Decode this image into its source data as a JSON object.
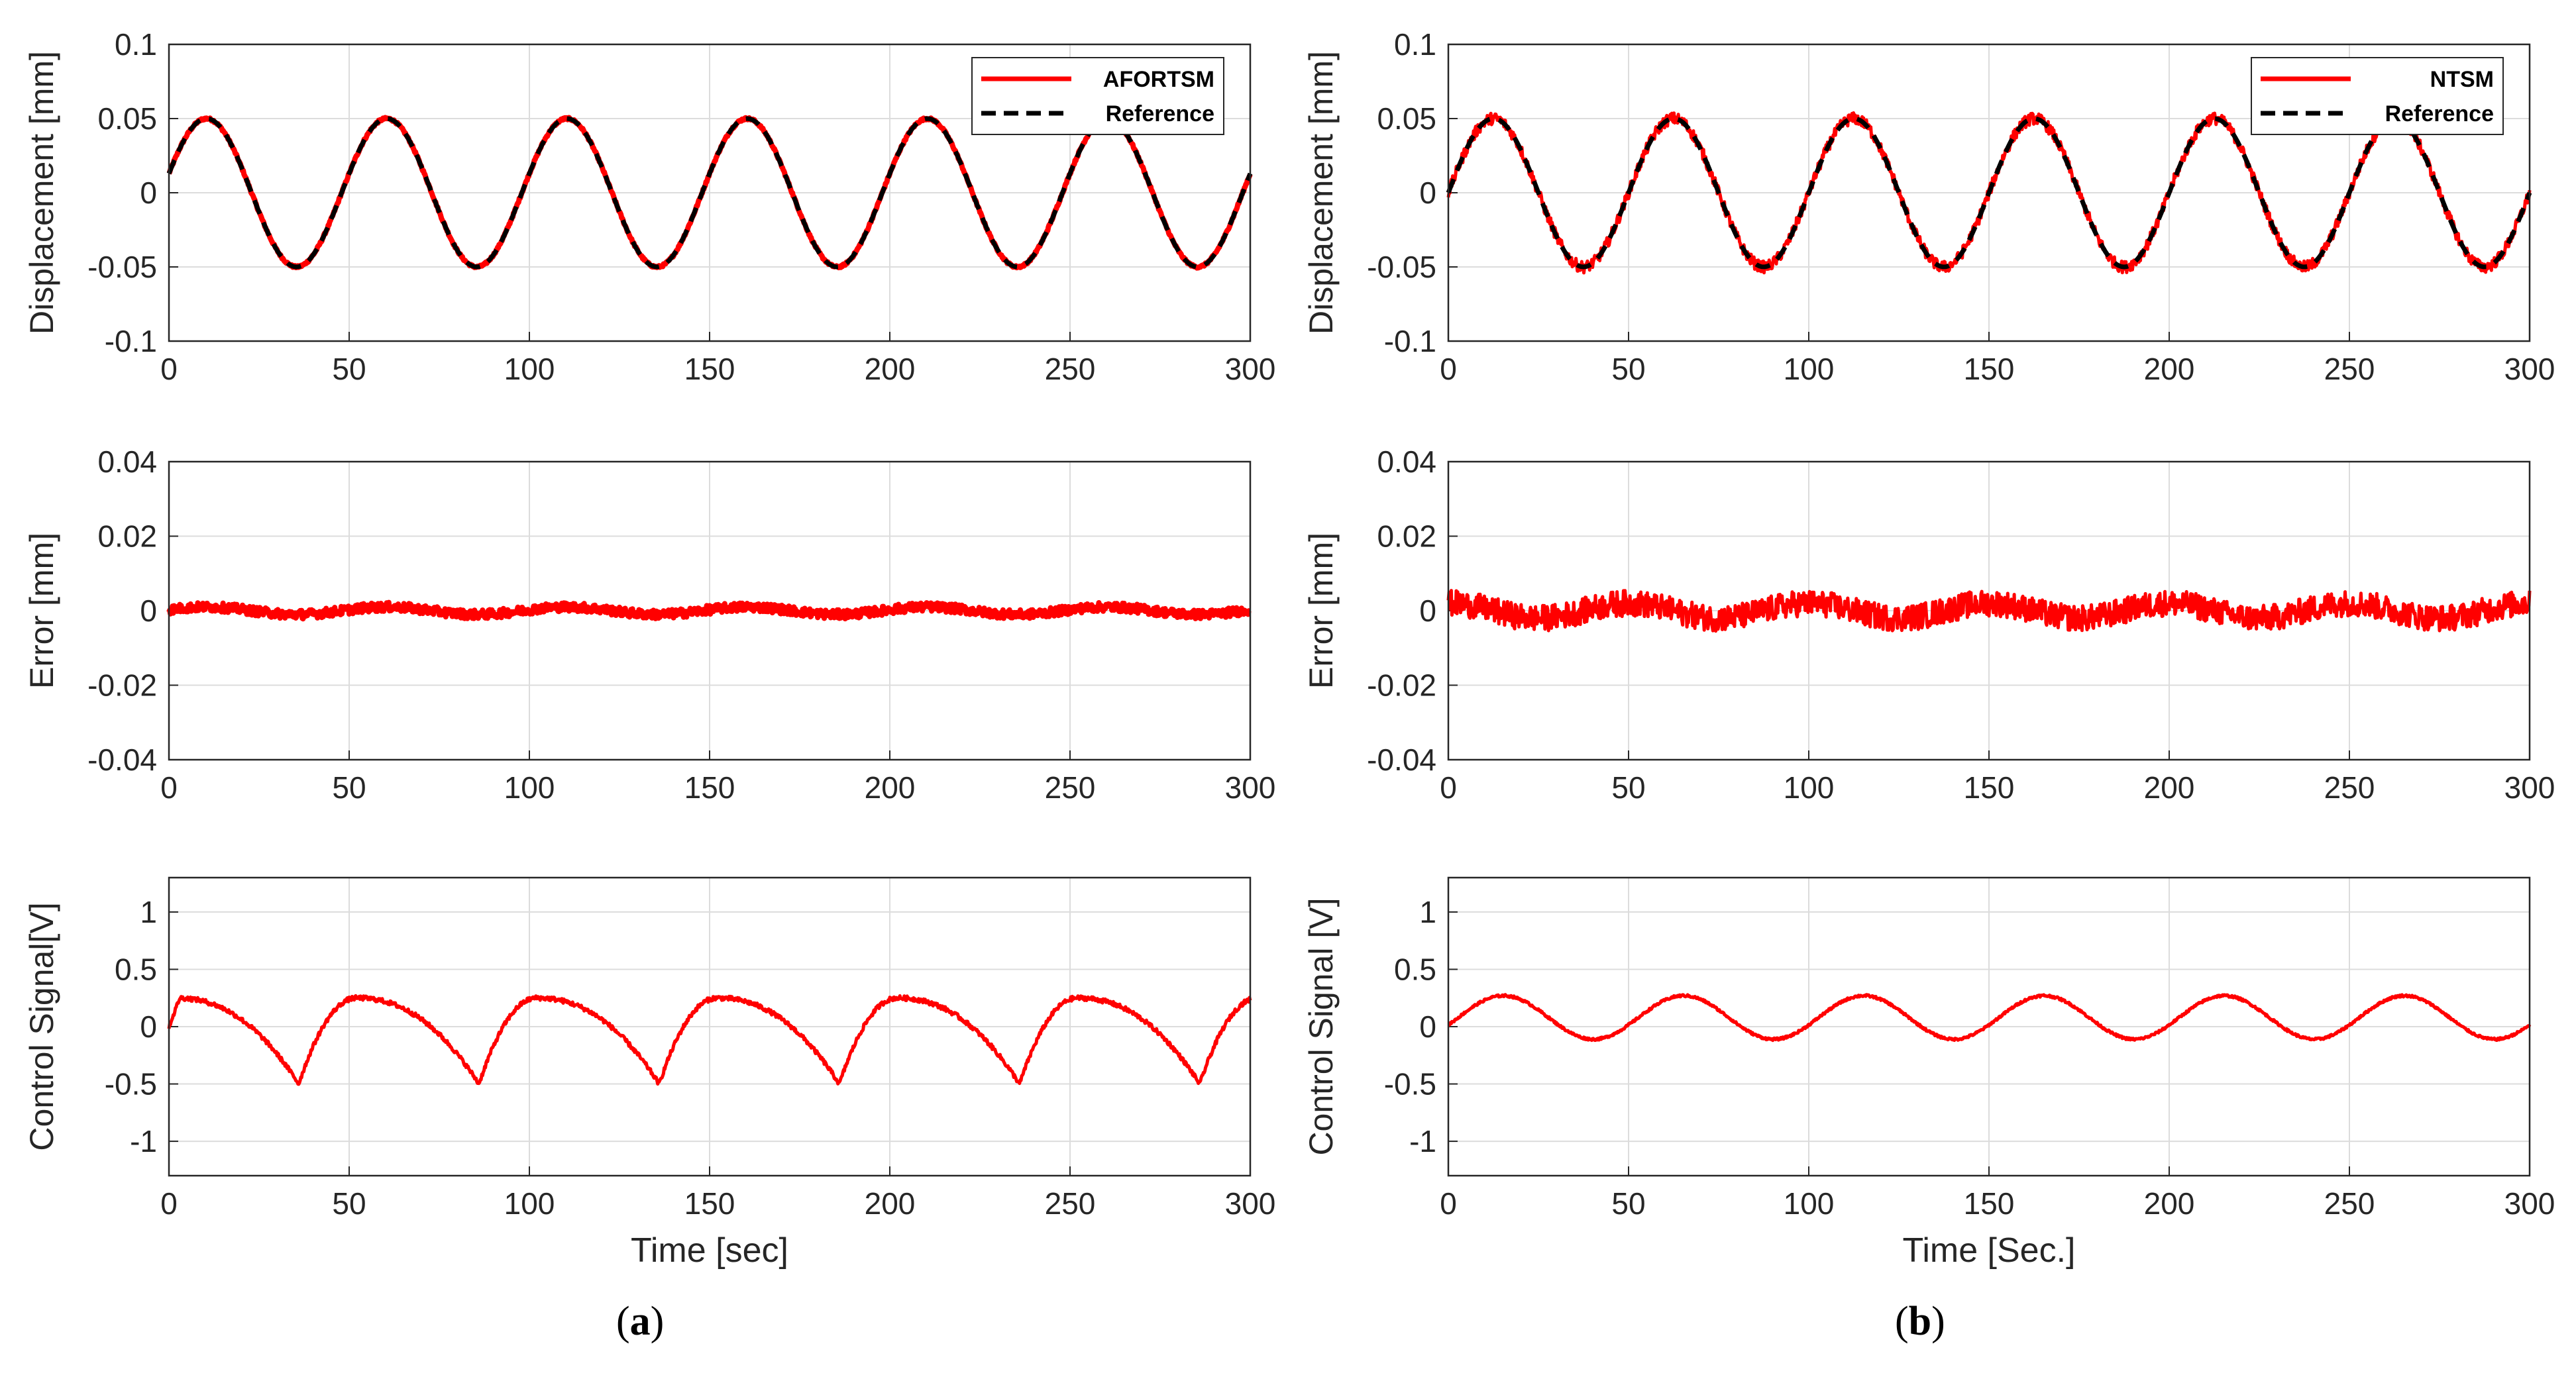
{
  "figure": {
    "label_a": "a",
    "label_b": "b"
  },
  "colors": {
    "signal": "#ff0000",
    "reference": "#000000",
    "grid": "#dcdcdc",
    "axis": "#262626"
  },
  "chart_data": [
    {
      "id": "a-displacement",
      "type": "line",
      "title": "",
      "xlabel": "",
      "ylabel": "Displacement [mm]",
      "xlim": [
        0,
        300
      ],
      "ylim": [
        -0.1,
        0.1
      ],
      "xticks": [
        "0",
        "50",
        "100",
        "150",
        "200",
        "250",
        "300"
      ],
      "yticks": [
        "-0.1",
        "-0.05",
        "0",
        "0.05",
        "0.1"
      ],
      "grid": true,
      "legend": "top-right",
      "series": [
        {
          "name": "AFORTSM",
          "style": "solid",
          "color": "#ff0000",
          "model": {
            "kind": "sine",
            "amplitude": 0.05,
            "period": 50,
            "phase_deg": 15,
            "noise": 0.0008
          }
        },
        {
          "name": "Reference",
          "style": "dashed",
          "color": "#000000",
          "model": {
            "kind": "sine",
            "amplitude": 0.05,
            "period": 50,
            "phase_deg": 15,
            "noise": 0
          }
        }
      ]
    },
    {
      "id": "b-displacement",
      "type": "line",
      "title": "",
      "xlabel": "",
      "ylabel": "Displacement [mm]",
      "xlim": [
        0,
        300
      ],
      "ylim": [
        -0.1,
        0.1
      ],
      "xticks": [
        "0",
        "50",
        "100",
        "150",
        "200",
        "250",
        "300"
      ],
      "yticks": [
        "-0.1",
        "-0.05",
        "0",
        "0.05",
        "0.1"
      ],
      "grid": true,
      "legend": "top-right",
      "series": [
        {
          "name": "NTSM",
          "style": "solid",
          "color": "#ff0000",
          "model": {
            "kind": "sine",
            "amplitude": 0.05,
            "period": 50,
            "phase_deg": 0,
            "noise": 0.004
          }
        },
        {
          "name": "Reference",
          "style": "dashed",
          "color": "#000000",
          "model": {
            "kind": "sine",
            "amplitude": 0.05,
            "period": 50,
            "phase_deg": 0,
            "noise": 0
          }
        }
      ]
    },
    {
      "id": "a-error",
      "type": "line",
      "title": "",
      "xlabel": "",
      "ylabel": "Error [mm]",
      "xlim": [
        0,
        300
      ],
      "ylim": [
        -0.04,
        0.04
      ],
      "xticks": [
        "0",
        "50",
        "100",
        "150",
        "200",
        "250",
        "300"
      ],
      "yticks": [
        "-0.04",
        "-0.02",
        "0",
        "0.02",
        "0.04"
      ],
      "grid": true,
      "legend": "none",
      "series": [
        {
          "name": "Error",
          "style": "solid",
          "color": "#ff0000",
          "model": {
            "kind": "sine",
            "amplitude": 0.001,
            "period": 50,
            "phase_deg": 15,
            "noise": 0.0012
          }
        }
      ]
    },
    {
      "id": "b-error",
      "type": "line",
      "title": "",
      "xlabel": "",
      "ylabel": "Error [mm]",
      "xlim": [
        0,
        300
      ],
      "ylim": [
        -0.04,
        0.04
      ],
      "xticks": [
        "0",
        "50",
        "100",
        "150",
        "200",
        "250",
        "300"
      ],
      "yticks": [
        "-0.04",
        "-0.02",
        "0",
        "0.02",
        "0.04"
      ],
      "grid": true,
      "legend": "none",
      "series": [
        {
          "name": "Error",
          "style": "solid",
          "color": "#ff0000",
          "model": {
            "kind": "sine",
            "amplitude": 0.002,
            "period": 50,
            "phase_deg": 90,
            "noise": 0.0035
          }
        }
      ]
    },
    {
      "id": "a-control",
      "type": "line",
      "title": "",
      "xlabel": "Time [sec]",
      "ylabel": "Control Signal[V]",
      "xlim": [
        0,
        300
      ],
      "ylim": [
        -1.3,
        1.3
      ],
      "xticks": [
        "0",
        "50",
        "100",
        "150",
        "200",
        "250",
        "300"
      ],
      "yticks": [
        "-1",
        "-0.5",
        "0",
        "0.5",
        "1"
      ],
      "ytick_values": [
        -1,
        -0.5,
        0,
        0.5,
        1
      ],
      "grid": true,
      "legend": "none",
      "series": [
        {
          "name": "Control Signal",
          "style": "solid",
          "color": "#ff0000",
          "model": {
            "kind": "sawtooth",
            "period": 50,
            "cusp_offset": 36,
            "peak_offset": 52,
            "low": -0.5,
            "high": 0.25,
            "noise": 0.02
          }
        }
      ]
    },
    {
      "id": "b-control",
      "type": "line",
      "title": "",
      "xlabel": "Time [Sec.]",
      "ylabel": "Control Signal [V]",
      "xlim": [
        0,
        300
      ],
      "ylim": [
        -1.3,
        1.3
      ],
      "xticks": [
        "0",
        "50",
        "100",
        "150",
        "200",
        "250",
        "300"
      ],
      "yticks": [
        "-1",
        "-0.5",
        "0",
        "0.5",
        "1"
      ],
      "ytick_values": [
        -1,
        -0.5,
        0,
        0.5,
        1
      ],
      "grid": true,
      "legend": "none",
      "series": [
        {
          "name": "Control Signal",
          "style": "solid",
          "color": "#ff0000",
          "model": {
            "kind": "sine-offset",
            "amplitude": 0.19,
            "offset": 0.08,
            "period": 50,
            "phase_deg": -20,
            "noise": 0.01
          }
        }
      ]
    }
  ]
}
